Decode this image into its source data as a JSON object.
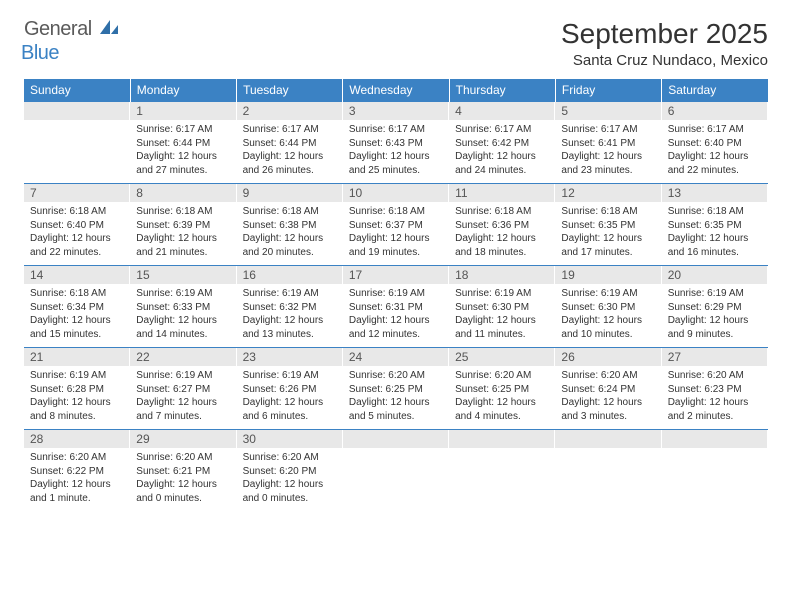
{
  "logo": {
    "part1": "General",
    "part2": "Blue"
  },
  "title": "September 2025",
  "location": "Santa Cruz Nundaco, Mexico",
  "colors": {
    "header_bg": "#3b82c4",
    "header_text": "#ffffff",
    "daynum_bg": "#e8e8e8",
    "border": "#3b82c4",
    "logo_gray": "#5a5a5a",
    "logo_blue": "#3b82c4"
  },
  "typography": {
    "title_fontsize": 28,
    "location_fontsize": 15,
    "header_fontsize": 12,
    "cell_fontsize": 10
  },
  "day_headers": [
    "Sunday",
    "Monday",
    "Tuesday",
    "Wednesday",
    "Thursday",
    "Friday",
    "Saturday"
  ],
  "weeks": [
    [
      {
        "num": "",
        "sunrise": "",
        "sunset": "",
        "daylight": ""
      },
      {
        "num": "1",
        "sunrise": "Sunrise: 6:17 AM",
        "sunset": "Sunset: 6:44 PM",
        "daylight": "Daylight: 12 hours and 27 minutes."
      },
      {
        "num": "2",
        "sunrise": "Sunrise: 6:17 AM",
        "sunset": "Sunset: 6:44 PM",
        "daylight": "Daylight: 12 hours and 26 minutes."
      },
      {
        "num": "3",
        "sunrise": "Sunrise: 6:17 AM",
        "sunset": "Sunset: 6:43 PM",
        "daylight": "Daylight: 12 hours and 25 minutes."
      },
      {
        "num": "4",
        "sunrise": "Sunrise: 6:17 AM",
        "sunset": "Sunset: 6:42 PM",
        "daylight": "Daylight: 12 hours and 24 minutes."
      },
      {
        "num": "5",
        "sunrise": "Sunrise: 6:17 AM",
        "sunset": "Sunset: 6:41 PM",
        "daylight": "Daylight: 12 hours and 23 minutes."
      },
      {
        "num": "6",
        "sunrise": "Sunrise: 6:17 AM",
        "sunset": "Sunset: 6:40 PM",
        "daylight": "Daylight: 12 hours and 22 minutes."
      }
    ],
    [
      {
        "num": "7",
        "sunrise": "Sunrise: 6:18 AM",
        "sunset": "Sunset: 6:40 PM",
        "daylight": "Daylight: 12 hours and 22 minutes."
      },
      {
        "num": "8",
        "sunrise": "Sunrise: 6:18 AM",
        "sunset": "Sunset: 6:39 PM",
        "daylight": "Daylight: 12 hours and 21 minutes."
      },
      {
        "num": "9",
        "sunrise": "Sunrise: 6:18 AM",
        "sunset": "Sunset: 6:38 PM",
        "daylight": "Daylight: 12 hours and 20 minutes."
      },
      {
        "num": "10",
        "sunrise": "Sunrise: 6:18 AM",
        "sunset": "Sunset: 6:37 PM",
        "daylight": "Daylight: 12 hours and 19 minutes."
      },
      {
        "num": "11",
        "sunrise": "Sunrise: 6:18 AM",
        "sunset": "Sunset: 6:36 PM",
        "daylight": "Daylight: 12 hours and 18 minutes."
      },
      {
        "num": "12",
        "sunrise": "Sunrise: 6:18 AM",
        "sunset": "Sunset: 6:35 PM",
        "daylight": "Daylight: 12 hours and 17 minutes."
      },
      {
        "num": "13",
        "sunrise": "Sunrise: 6:18 AM",
        "sunset": "Sunset: 6:35 PM",
        "daylight": "Daylight: 12 hours and 16 minutes."
      }
    ],
    [
      {
        "num": "14",
        "sunrise": "Sunrise: 6:18 AM",
        "sunset": "Sunset: 6:34 PM",
        "daylight": "Daylight: 12 hours and 15 minutes."
      },
      {
        "num": "15",
        "sunrise": "Sunrise: 6:19 AM",
        "sunset": "Sunset: 6:33 PM",
        "daylight": "Daylight: 12 hours and 14 minutes."
      },
      {
        "num": "16",
        "sunrise": "Sunrise: 6:19 AM",
        "sunset": "Sunset: 6:32 PM",
        "daylight": "Daylight: 12 hours and 13 minutes."
      },
      {
        "num": "17",
        "sunrise": "Sunrise: 6:19 AM",
        "sunset": "Sunset: 6:31 PM",
        "daylight": "Daylight: 12 hours and 12 minutes."
      },
      {
        "num": "18",
        "sunrise": "Sunrise: 6:19 AM",
        "sunset": "Sunset: 6:30 PM",
        "daylight": "Daylight: 12 hours and 11 minutes."
      },
      {
        "num": "19",
        "sunrise": "Sunrise: 6:19 AM",
        "sunset": "Sunset: 6:30 PM",
        "daylight": "Daylight: 12 hours and 10 minutes."
      },
      {
        "num": "20",
        "sunrise": "Sunrise: 6:19 AM",
        "sunset": "Sunset: 6:29 PM",
        "daylight": "Daylight: 12 hours and 9 minutes."
      }
    ],
    [
      {
        "num": "21",
        "sunrise": "Sunrise: 6:19 AM",
        "sunset": "Sunset: 6:28 PM",
        "daylight": "Daylight: 12 hours and 8 minutes."
      },
      {
        "num": "22",
        "sunrise": "Sunrise: 6:19 AM",
        "sunset": "Sunset: 6:27 PM",
        "daylight": "Daylight: 12 hours and 7 minutes."
      },
      {
        "num": "23",
        "sunrise": "Sunrise: 6:19 AM",
        "sunset": "Sunset: 6:26 PM",
        "daylight": "Daylight: 12 hours and 6 minutes."
      },
      {
        "num": "24",
        "sunrise": "Sunrise: 6:20 AM",
        "sunset": "Sunset: 6:25 PM",
        "daylight": "Daylight: 12 hours and 5 minutes."
      },
      {
        "num": "25",
        "sunrise": "Sunrise: 6:20 AM",
        "sunset": "Sunset: 6:25 PM",
        "daylight": "Daylight: 12 hours and 4 minutes."
      },
      {
        "num": "26",
        "sunrise": "Sunrise: 6:20 AM",
        "sunset": "Sunset: 6:24 PM",
        "daylight": "Daylight: 12 hours and 3 minutes."
      },
      {
        "num": "27",
        "sunrise": "Sunrise: 6:20 AM",
        "sunset": "Sunset: 6:23 PM",
        "daylight": "Daylight: 12 hours and 2 minutes."
      }
    ],
    [
      {
        "num": "28",
        "sunrise": "Sunrise: 6:20 AM",
        "sunset": "Sunset: 6:22 PM",
        "daylight": "Daylight: 12 hours and 1 minute."
      },
      {
        "num": "29",
        "sunrise": "Sunrise: 6:20 AM",
        "sunset": "Sunset: 6:21 PM",
        "daylight": "Daylight: 12 hours and 0 minutes."
      },
      {
        "num": "30",
        "sunrise": "Sunrise: 6:20 AM",
        "sunset": "Sunset: 6:20 PM",
        "daylight": "Daylight: 12 hours and 0 minutes."
      },
      {
        "num": "",
        "sunrise": "",
        "sunset": "",
        "daylight": ""
      },
      {
        "num": "",
        "sunrise": "",
        "sunset": "",
        "daylight": ""
      },
      {
        "num": "",
        "sunrise": "",
        "sunset": "",
        "daylight": ""
      },
      {
        "num": "",
        "sunrise": "",
        "sunset": "",
        "daylight": ""
      }
    ]
  ]
}
